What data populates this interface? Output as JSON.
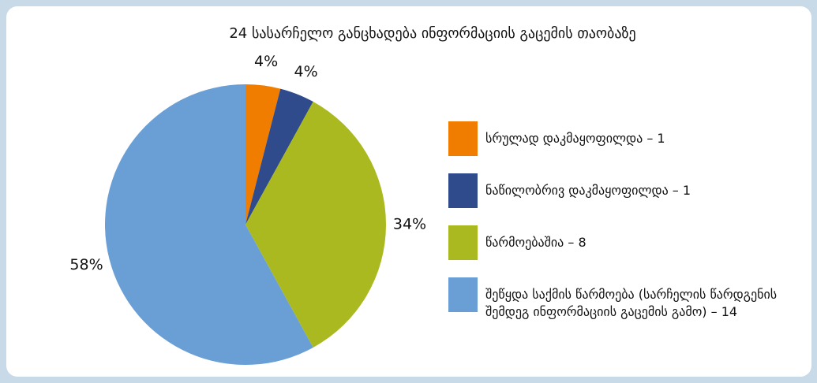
{
  "chart_data": {
    "type": "pie",
    "title": "24 სასარჩელო განცხადება ინფორმაციის გაცემის თაობაზე",
    "categories": [
      "სრულად დაკმაყოფილდა – 1",
      "ნაწილობრივ დაკმაყოფილდა – 1",
      "წარმოებაშია – 8",
      "შეწყდა საქმის წარმოება (სარჩელის წარდგენის შემდეგ ინფორმაციის გაცემის გამო) – 14"
    ],
    "values": [
      4,
      4,
      34,
      58
    ],
    "value_labels": [
      "4%",
      "4%",
      "34%",
      "58%"
    ],
    "colors": [
      "#f07d00",
      "#2f4b8c",
      "#aab91f",
      "#6a9fd5"
    ],
    "legend": "right"
  }
}
